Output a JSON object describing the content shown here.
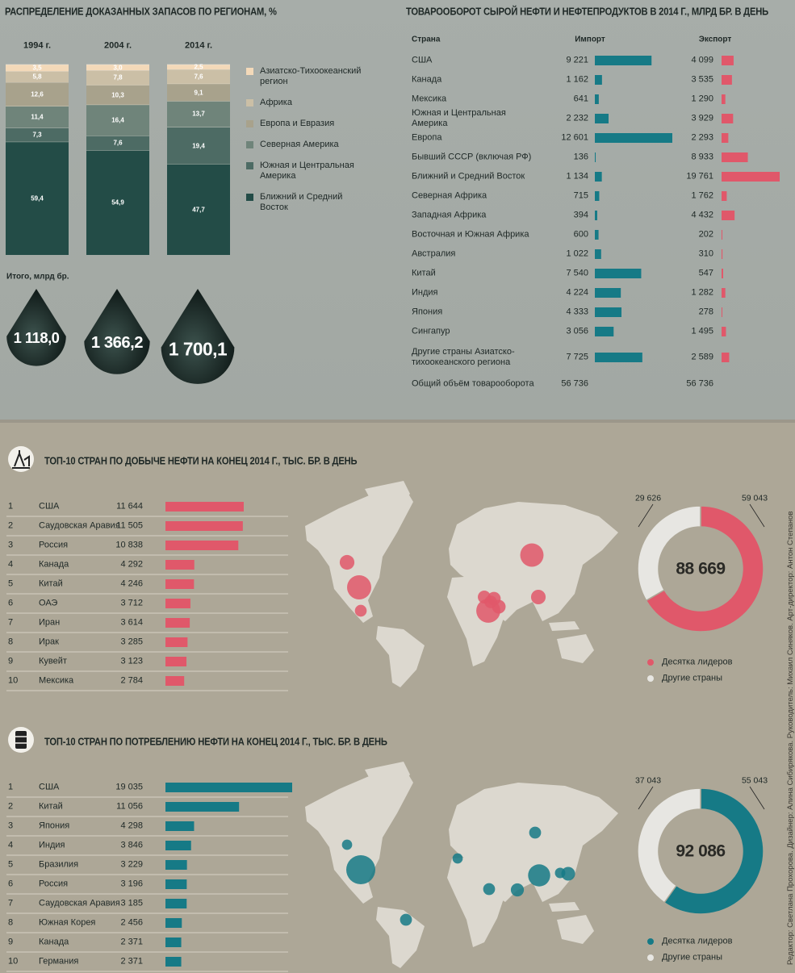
{
  "chart_data": [
    {
      "type": "stacked_bar",
      "title": "РАСПРЕДЕЛЕНИЕ ДОКАЗАННЫХ ЗАПАСОВ ПО РЕГИОНАМ, %",
      "categories": [
        "1994 г.",
        "2004 г.",
        "2014 г."
      ],
      "series": [
        {
          "name": "Азиатско-Тихоокеанский регион",
          "color": "#f3d9b9",
          "values": [
            3.5,
            3.0,
            2.5
          ],
          "value_labels": [
            "3,5",
            "3,0",
            "2,5"
          ]
        },
        {
          "name": "Африка",
          "color": "#cbbfa6",
          "values": [
            5.8,
            7.8,
            7.6
          ],
          "value_labels": [
            "5,8",
            "7,8",
            "7,6"
          ]
        },
        {
          "name": "Европа и Евразия",
          "color": "#a8a28c",
          "values": [
            12.6,
            10.3,
            9.1
          ],
          "value_labels": [
            "12,6",
            "10,3",
            "9,1"
          ]
        },
        {
          "name": "Северная Америка",
          "color": "#6f847a",
          "values": [
            11.4,
            16.4,
            13.7
          ],
          "value_labels": [
            "11,4",
            "16,4",
            "13,7"
          ]
        },
        {
          "name": "Южная и Центральная Америка",
          "color": "#4d6b64",
          "values": [
            7.3,
            7.6,
            19.4
          ],
          "value_labels": [
            "7,3",
            "7,6",
            "19,4"
          ]
        },
        {
          "name": "Ближний и Средний Восток",
          "color": "#234c47",
          "values": [
            59.4,
            54.9,
            47.7
          ],
          "value_labels": [
            "59,4",
            "54,9",
            "47,7"
          ]
        }
      ],
      "totals": {
        "title": "Итого, млрд бр.",
        "values": [
          1118.0,
          1366.2,
          1700.1
        ],
        "value_labels": [
          "1 118,0",
          "1 366,2",
          "1 700,1"
        ]
      }
    },
    {
      "type": "table_bar",
      "title": "ТОВАРООБОРОТ СЫРОЙ НЕФТИ И НЕФТЕПРОДУКТОВ В 2014 Г., МЛРД БР. В ДЕНЬ",
      "category_label": "Страна",
      "categories": [
        "США",
        "Канада",
        "Мексика",
        "Южная и Центральная Америка",
        "Европа",
        "Бывший СССР (включая РФ)",
        "Ближний и Средний Восток",
        "Северная Африка",
        "Западная Африка",
        "Восточная и Южная Африка",
        "Австралия",
        "Китай",
        "Индия",
        "Япония",
        "Сингапур",
        "Другие страны Азиатско-тихоокеанского региона"
      ],
      "series": [
        {
          "name": "Импорт",
          "color": "#167a86",
          "values": [
            9221,
            1162,
            641,
            2232,
            12601,
            136,
            1134,
            715,
            394,
            600,
            1022,
            7540,
            4224,
            4333,
            3056,
            7725
          ],
          "value_labels": [
            "9 221",
            "1 162",
            "641",
            "2 232",
            "12 601",
            "136",
            "1 134",
            "715",
            "394",
            "600",
            "1 022",
            "7 540",
            "4 224",
            "4 333",
            "3 056",
            "7 725"
          ]
        },
        {
          "name": "Экспорт",
          "color": "#e0586a",
          "values": [
            4099,
            3535,
            1290,
            3929,
            2293,
            8933,
            19761,
            1762,
            4432,
            202,
            310,
            547,
            1282,
            278,
            1495,
            2589
          ],
          "value_labels": [
            "4 099",
            "3 535",
            "1 290",
            "3 929",
            "2 293",
            "8 933",
            "19 761",
            "1 762",
            "4 432",
            "202",
            "310",
            "547",
            "1 282",
            "278",
            "1 495",
            "2 589"
          ]
        }
      ],
      "total": {
        "label": "Общий объём товарооборота",
        "values": [
          56736,
          56736
        ],
        "value_labels": [
          "56 736",
          "56 736"
        ]
      }
    },
    {
      "type": "ranked_bar",
      "title": "ТОП-10 СТРАН ПО ДОБЫЧЕ НЕФТИ НА КОНЕЦ 2014 Г., ТЫС. БР. В ДЕНЬ",
      "ranks": [
        1,
        2,
        3,
        4,
        5,
        6,
        7,
        8,
        9,
        10
      ],
      "categories": [
        "США",
        "Саудовская Аравия",
        "Россия",
        "Канада",
        "Китай",
        "ОАЭ",
        "Иран",
        "Ирак",
        "Кувейт",
        "Мексика"
      ],
      "values": [
        11644,
        11505,
        10838,
        4292,
        4246,
        3712,
        3614,
        3285,
        3123,
        2784
      ],
      "value_labels": [
        "11 644",
        "11 505",
        "10 838",
        "4 292",
        "4 246",
        "3 712",
        "3 614",
        "3 285",
        "3 123",
        "2 784"
      ],
      "color": "#e0586a",
      "donut": {
        "center": {
          "value": 88669,
          "value_label": "88 669"
        },
        "series": [
          {
            "name": "Десятка лидеров",
            "color": "#e0586a",
            "value": 59043,
            "value_label": "59 043"
          },
          {
            "name": "Другие страны",
            "color": "#e7e6e2",
            "value": 29626,
            "value_label": "29 626"
          }
        ]
      }
    },
    {
      "type": "ranked_bar",
      "title": "ТОП-10 СТРАН ПО ПОТРЕБЛЕНИЮ НЕФТИ НА КОНЕЦ 2014 Г., ТЫС. БР. В ДЕНЬ",
      "ranks": [
        1,
        2,
        3,
        4,
        5,
        6,
        7,
        8,
        9,
        10
      ],
      "categories": [
        "США",
        "Китай",
        "Япония",
        "Индия",
        "Бразилия",
        "Россия",
        "Саудовская Аравия",
        "Южная Корея",
        "Канада",
        "Германия"
      ],
      "values": [
        19035,
        11056,
        4298,
        3846,
        3229,
        3196,
        3185,
        2456,
        2371,
        2371
      ],
      "value_labels": [
        "19 035",
        "11 056",
        "4 298",
        "3 846",
        "3 229",
        "3 196",
        "3 185",
        "2 456",
        "2 371",
        "2 371"
      ],
      "color": "#167a86",
      "donut": {
        "center": {
          "value": 92086,
          "value_label": "92 086"
        },
        "series": [
          {
            "name": "Десятка лидеров",
            "color": "#167a86",
            "value": 55043,
            "value_label": "55 043"
          },
          {
            "name": "Другие страны",
            "color": "#e7e6e2",
            "value": 37043,
            "value_label": "37 043"
          }
        ]
      }
    }
  ],
  "credits": "Редактор: Светлана Прохорова. Дизайнер: Алина Сибирякова. Руководитель: Михаил Синяков. Арт-директор: Антон Степанов"
}
